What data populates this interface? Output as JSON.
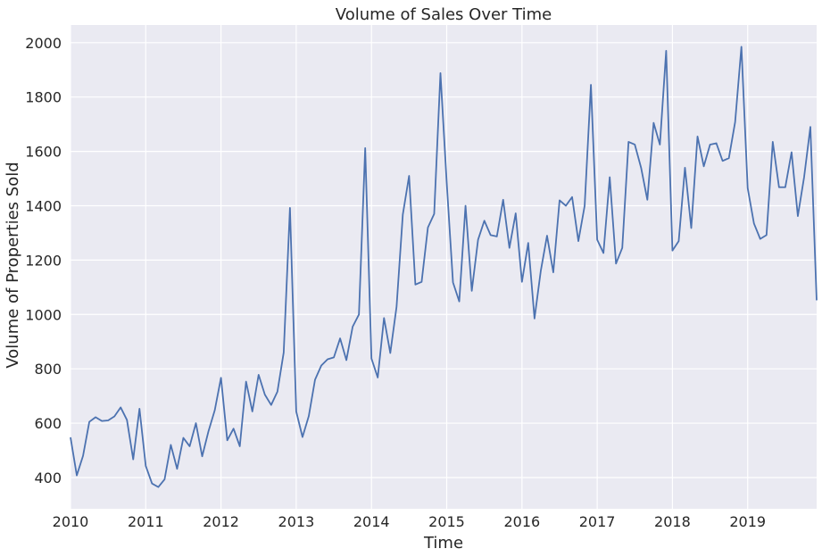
{
  "chart_data": {
    "type": "line",
    "title": "Volume of Sales Over Time",
    "xlabel": "Time",
    "ylabel": "Volume of Properties Sold",
    "xlim": [
      "2010-01",
      "2019-12"
    ],
    "ylim": [
      285,
      2065
    ],
    "x_ticks": [
      "2010",
      "2011",
      "2012",
      "2013",
      "2014",
      "2015",
      "2016",
      "2017",
      "2018",
      "2019"
    ],
    "y_ticks": [
      400,
      600,
      800,
      1000,
      1200,
      1400,
      1600,
      1800,
      2000
    ],
    "grid": true,
    "legend": "none",
    "colors": {
      "line": "#4c72b0",
      "plot_background": "#eaeaf2",
      "grid": "#ffffff",
      "text": "#262626"
    },
    "series": [
      {
        "x": [
          "2010-01",
          "2010-02",
          "2010-03",
          "2010-04",
          "2010-05",
          "2010-06",
          "2010-07",
          "2010-08",
          "2010-09",
          "2010-10",
          "2010-11",
          "2010-12",
          "2011-01",
          "2011-02",
          "2011-03",
          "2011-04",
          "2011-05",
          "2011-06",
          "2011-07",
          "2011-08",
          "2011-09",
          "2011-10",
          "2011-11",
          "2011-12",
          "2012-01",
          "2012-02",
          "2012-03",
          "2012-04",
          "2012-05",
          "2012-06",
          "2012-07",
          "2012-08",
          "2012-09",
          "2012-10",
          "2012-11",
          "2012-12",
          "2013-01",
          "2013-02",
          "2013-03",
          "2013-04",
          "2013-05",
          "2013-06",
          "2013-07",
          "2013-08",
          "2013-09",
          "2013-10",
          "2013-11",
          "2013-12",
          "2014-01",
          "2014-02",
          "2014-03",
          "2014-04",
          "2014-05",
          "2014-06",
          "2014-07",
          "2014-08",
          "2014-09",
          "2014-10",
          "2014-11",
          "2014-12",
          "2015-01",
          "2015-02",
          "2015-03",
          "2015-04",
          "2015-05",
          "2015-06",
          "2015-07",
          "2015-08",
          "2015-09",
          "2015-10",
          "2015-11",
          "2015-12",
          "2016-01",
          "2016-02",
          "2016-03",
          "2016-04",
          "2016-05",
          "2016-06",
          "2016-07",
          "2016-08",
          "2016-09",
          "2016-10",
          "2016-11",
          "2016-12",
          "2017-01",
          "2017-02",
          "2017-03",
          "2017-04",
          "2017-05",
          "2017-06",
          "2017-07",
          "2017-08",
          "2017-09",
          "2017-10",
          "2017-11",
          "2017-12",
          "2018-01",
          "2018-02",
          "2018-03",
          "2018-04",
          "2018-05",
          "2018-06",
          "2018-07",
          "2018-08",
          "2018-09",
          "2018-10",
          "2018-11",
          "2018-12",
          "2019-01",
          "2019-02",
          "2019-03",
          "2019-04",
          "2019-05",
          "2019-06",
          "2019-07",
          "2019-08",
          "2019-09",
          "2019-10",
          "2019-11",
          "2019-12"
        ],
        "values": [
          548,
          408,
          480,
          605,
          622,
          608,
          610,
          625,
          658,
          612,
          467,
          653,
          443,
          378,
          365,
          393,
          520,
          432,
          546,
          515,
          600,
          478,
          570,
          647,
          767,
          537,
          580,
          515,
          753,
          643,
          778,
          705,
          667,
          716,
          860,
          1392,
          643,
          549,
          626,
          760,
          812,
          835,
          842,
          912,
          832,
          955,
          1000,
          1612,
          838,
          768,
          987,
          858,
          1028,
          1368,
          1510,
          1110,
          1120,
          1320,
          1370,
          1888,
          1485,
          1118,
          1048,
          1400,
          1087,
          1275,
          1345,
          1292,
          1287,
          1422,
          1245,
          1372,
          1120,
          1263,
          985,
          1160,
          1290,
          1155,
          1420,
          1400,
          1432,
          1270,
          1400,
          1845,
          1275,
          1226,
          1505,
          1187,
          1245,
          1635,
          1625,
          1540,
          1422,
          1705,
          1625,
          1970,
          1235,
          1270,
          1540,
          1318,
          1655,
          1545,
          1625,
          1630,
          1565,
          1575,
          1708,
          1985,
          1465,
          1335,
          1278,
          1292,
          1635,
          1468,
          1468,
          1597,
          1362,
          1505,
          1690,
          1052
        ]
      }
    ]
  }
}
